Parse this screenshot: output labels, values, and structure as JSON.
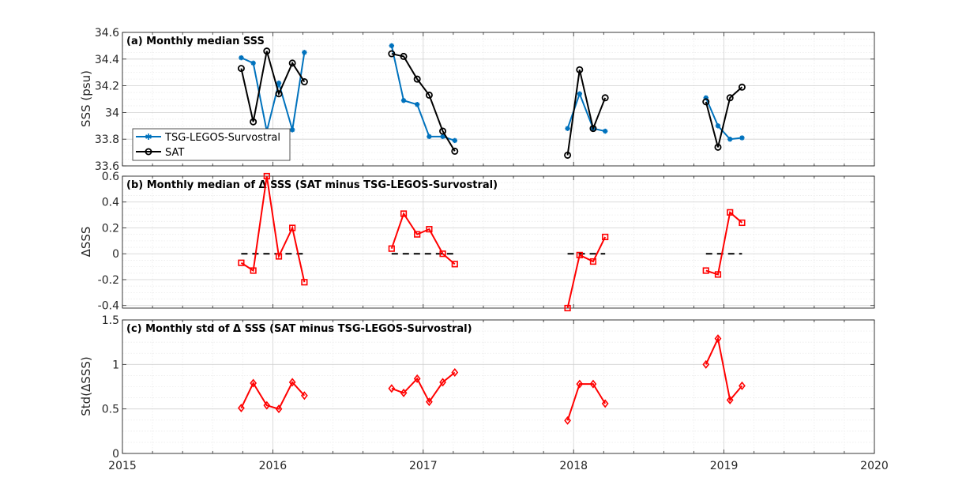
{
  "chart_data": [
    {
      "type": "line",
      "title": "(a) Monthly median SSS",
      "xlabel": "",
      "ylabel": "SSS (psu)",
      "xlim": [
        2015,
        2020
      ],
      "ylim": [
        33.6,
        34.6
      ],
      "yticks": [
        "33.6",
        "33.8",
        "34",
        "34.2",
        "34.4",
        "34.6"
      ],
      "grid": true,
      "legend_position": "bottom-left",
      "series": [
        {
          "name": "TSG-LEGOS-Survostral",
          "color": "#0072BD",
          "marker": "asterisk",
          "segments": [
            {
              "x": [
                2015.79,
                2015.87,
                2015.96,
                2016.04,
                2016.13,
                2016.21
              ],
              "y": [
                34.41,
                34.37,
                33.86,
                34.22,
                33.87,
                34.45
              ]
            },
            {
              "x": [
                2016.79,
                2016.87,
                2016.96,
                2017.04,
                2017.13,
                2017.21
              ],
              "y": [
                34.5,
                34.09,
                34.06,
                33.82,
                33.82,
                33.79
              ]
            },
            {
              "x": [
                2017.96,
                2018.04,
                2018.13,
                2018.21
              ],
              "y": [
                33.88,
                34.14,
                33.88,
                33.86
              ]
            },
            {
              "x": [
                2018.88,
                2018.96,
                2019.04,
                2019.12
              ],
              "y": [
                34.11,
                33.9,
                33.8,
                33.81
              ]
            }
          ]
        },
        {
          "name": "SAT",
          "color": "#000000",
          "marker": "circle",
          "segments": [
            {
              "x": [
                2015.79,
                2015.87,
                2015.96,
                2016.04,
                2016.13,
                2016.21
              ],
              "y": [
                34.33,
                33.93,
                34.46,
                34.14,
                34.37,
                34.23
              ]
            },
            {
              "x": [
                2016.79,
                2016.87,
                2016.96,
                2017.04,
                2017.13,
                2017.21
              ],
              "y": [
                34.44,
                34.42,
                34.25,
                34.13,
                33.86,
                33.71
              ]
            },
            {
              "x": [
                2017.96,
                2018.04,
                2018.13,
                2018.21
              ],
              "y": [
                33.68,
                34.32,
                33.88,
                34.11
              ]
            },
            {
              "x": [
                2018.88,
                2018.96,
                2019.04,
                2019.12
              ],
              "y": [
                34.08,
                33.74,
                34.11,
                34.19
              ]
            }
          ]
        }
      ]
    },
    {
      "type": "line",
      "title": "(b) Monthly median of Δ SSS (SAT minus TSG-LEGOS-Survostral)",
      "xlabel": "",
      "ylabel": "ΔSSS",
      "xlim": [
        2015,
        2020
      ],
      "ylim": [
        -0.42,
        0.6
      ],
      "yticks": [
        "-0.4",
        "-0.2",
        "0",
        "0.2",
        "0.4",
        "0.6"
      ],
      "grid": true,
      "series": [
        {
          "color": "#FF0000",
          "marker": "square",
          "segments": [
            {
              "x": [
                2015.79,
                2015.87,
                2015.96,
                2016.04,
                2016.13,
                2016.21
              ],
              "y": [
                -0.07,
                -0.13,
                0.6,
                -0.02,
                0.2,
                -0.22
              ]
            },
            {
              "x": [
                2016.79,
                2016.87,
                2016.96,
                2017.04,
                2017.13,
                2017.21
              ],
              "y": [
                0.04,
                0.31,
                0.15,
                0.19,
                0.0,
                -0.08
              ]
            },
            {
              "x": [
                2017.96,
                2018.04,
                2018.13,
                2018.21
              ],
              "y": [
                -0.42,
                -0.01,
                -0.06,
                0.13
              ]
            },
            {
              "x": [
                2018.88,
                2018.96,
                2019.04,
                2019.12
              ],
              "y": [
                -0.13,
                -0.16,
                0.32,
                0.24
              ]
            }
          ]
        }
      ],
      "zero_lines": [
        {
          "x": [
            2015.79,
            2016.21
          ]
        },
        {
          "x": [
            2016.79,
            2017.21
          ]
        },
        {
          "x": [
            2017.96,
            2018.21
          ]
        },
        {
          "x": [
            2018.88,
            2019.12
          ]
        }
      ]
    },
    {
      "type": "line",
      "title": "(c) Monthly std of Δ SSS (SAT minus TSG-LEGOS-Survostral)",
      "xlabel": "",
      "ylabel": "Std(ΔSSS)",
      "xlim": [
        2015,
        2020
      ],
      "ylim": [
        0,
        1.5
      ],
      "yticks": [
        "0",
        "0.5",
        "1",
        "1.5"
      ],
      "xticks": [
        "2015",
        "2016",
        "2017",
        "2018",
        "2019",
        "2020"
      ],
      "grid": true,
      "series": [
        {
          "color": "#FF0000",
          "marker": "diamond",
          "segments": [
            {
              "x": [
                2015.79,
                2015.87,
                2015.96,
                2016.04,
                2016.13,
                2016.21
              ],
              "y": [
                0.51,
                0.79,
                0.54,
                0.5,
                0.8,
                0.65
              ]
            },
            {
              "x": [
                2016.79,
                2016.87,
                2016.96,
                2017.04,
                2017.13,
                2017.21
              ],
              "y": [
                0.73,
                0.68,
                0.84,
                0.58,
                0.8,
                0.91
              ]
            },
            {
              "x": [
                2017.96,
                2018.04,
                2018.13,
                2018.21
              ],
              "y": [
                0.37,
                0.78,
                0.78,
                0.56
              ]
            },
            {
              "x": [
                2018.88,
                2018.96,
                2019.04,
                2019.12
              ],
              "y": [
                1.0,
                1.29,
                0.6,
                0.76
              ]
            }
          ]
        }
      ]
    }
  ]
}
